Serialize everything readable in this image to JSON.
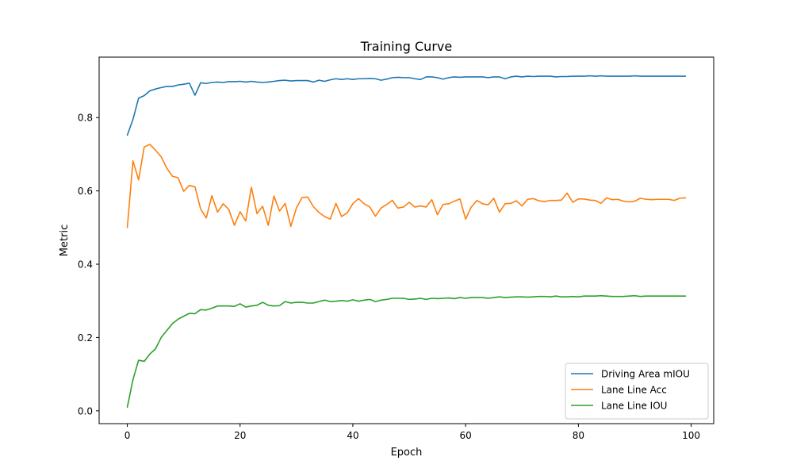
{
  "chart_data": {
    "type": "line",
    "title": "Training Curve",
    "xlabel": "Epoch",
    "ylabel": "Metric",
    "xlim": [
      -5,
      104
    ],
    "ylim": [
      -0.035,
      0.965
    ],
    "xticks": [
      0,
      20,
      40,
      60,
      80,
      100
    ],
    "xtick_labels": [
      "0",
      "20",
      "40",
      "60",
      "80",
      "100"
    ],
    "yticks": [
      0.0,
      0.2,
      0.4,
      0.6,
      0.8
    ],
    "ytick_labels": [
      "0.0",
      "0.2",
      "0.4",
      "0.6",
      "0.8"
    ],
    "grid": false,
    "legend_position": "lower right",
    "x": [
      0,
      1,
      2,
      3,
      4,
      5,
      6,
      7,
      8,
      9,
      10,
      11,
      12,
      13,
      14,
      15,
      16,
      17,
      18,
      19,
      20,
      21,
      22,
      23,
      24,
      25,
      26,
      27,
      28,
      29,
      30,
      31,
      32,
      33,
      34,
      35,
      36,
      37,
      38,
      39,
      40,
      41,
      42,
      43,
      44,
      45,
      46,
      47,
      48,
      49,
      50,
      51,
      52,
      53,
      54,
      55,
      56,
      57,
      58,
      59,
      60,
      61,
      62,
      63,
      64,
      65,
      66,
      67,
      68,
      69,
      70,
      71,
      72,
      73,
      74,
      75,
      76,
      77,
      78,
      79,
      80,
      81,
      82,
      83,
      84,
      85,
      86,
      87,
      88,
      89,
      90,
      91,
      92,
      93,
      94,
      95,
      96,
      97,
      98,
      99
    ],
    "series": [
      {
        "name": "Driving Area mIOU",
        "color": "#1f77b4",
        "values": [
          0.752,
          0.795,
          0.853,
          0.86,
          0.873,
          0.878,
          0.882,
          0.885,
          0.885,
          0.889,
          0.891,
          0.894,
          0.861,
          0.895,
          0.893,
          0.896,
          0.897,
          0.896,
          0.898,
          0.898,
          0.899,
          0.897,
          0.899,
          0.897,
          0.896,
          0.897,
          0.899,
          0.901,
          0.902,
          0.9,
          0.901,
          0.901,
          0.901,
          0.897,
          0.902,
          0.899,
          0.903,
          0.906,
          0.904,
          0.906,
          0.904,
          0.906,
          0.906,
          0.907,
          0.906,
          0.902,
          0.905,
          0.909,
          0.91,
          0.909,
          0.909,
          0.906,
          0.904,
          0.911,
          0.911,
          0.909,
          0.905,
          0.909,
          0.911,
          0.91,
          0.911,
          0.911,
          0.911,
          0.911,
          0.909,
          0.911,
          0.911,
          0.906,
          0.911,
          0.913,
          0.911,
          0.913,
          0.912,
          0.913,
          0.913,
          0.913,
          0.911,
          0.912,
          0.912,
          0.913,
          0.913,
          0.913,
          0.914,
          0.913,
          0.914,
          0.913,
          0.913,
          0.913,
          0.913,
          0.913,
          0.914,
          0.913,
          0.913,
          0.913,
          0.913,
          0.913,
          0.913,
          0.913,
          0.913,
          0.913
        ]
      },
      {
        "name": "Lane Line Acc",
        "color": "#ff7f0e",
        "values": [
          0.5,
          0.682,
          0.63,
          0.72,
          0.727,
          0.711,
          0.693,
          0.662,
          0.64,
          0.636,
          0.599,
          0.615,
          0.611,
          0.551,
          0.526,
          0.587,
          0.542,
          0.565,
          0.549,
          0.506,
          0.543,
          0.518,
          0.61,
          0.538,
          0.558,
          0.506,
          0.586,
          0.545,
          0.566,
          0.503,
          0.554,
          0.582,
          0.583,
          0.557,
          0.541,
          0.53,
          0.523,
          0.566,
          0.53,
          0.54,
          0.565,
          0.579,
          0.565,
          0.556,
          0.531,
          0.553,
          0.563,
          0.574,
          0.553,
          0.556,
          0.569,
          0.556,
          0.559,
          0.556,
          0.576,
          0.535,
          0.563,
          0.565,
          0.572,
          0.578,
          0.523,
          0.556,
          0.574,
          0.565,
          0.562,
          0.58,
          0.542,
          0.565,
          0.566,
          0.573,
          0.559,
          0.577,
          0.579,
          0.573,
          0.571,
          0.574,
          0.574,
          0.575,
          0.594,
          0.569,
          0.578,
          0.578,
          0.575,
          0.574,
          0.566,
          0.581,
          0.576,
          0.577,
          0.572,
          0.57,
          0.572,
          0.58,
          0.577,
          0.576,
          0.577,
          0.577,
          0.577,
          0.574,
          0.58,
          0.581
        ]
      },
      {
        "name": "Lane Line IOU",
        "color": "#2ca02c",
        "values": [
          0.01,
          0.085,
          0.138,
          0.135,
          0.155,
          0.169,
          0.2,
          0.219,
          0.238,
          0.25,
          0.258,
          0.266,
          0.265,
          0.276,
          0.275,
          0.28,
          0.286,
          0.286,
          0.286,
          0.285,
          0.292,
          0.283,
          0.286,
          0.288,
          0.296,
          0.288,
          0.286,
          0.287,
          0.298,
          0.294,
          0.296,
          0.296,
          0.294,
          0.294,
          0.298,
          0.302,
          0.298,
          0.299,
          0.301,
          0.299,
          0.303,
          0.299,
          0.302,
          0.304,
          0.298,
          0.302,
          0.304,
          0.307,
          0.307,
          0.307,
          0.304,
          0.305,
          0.307,
          0.304,
          0.307,
          0.306,
          0.307,
          0.308,
          0.306,
          0.309,
          0.307,
          0.309,
          0.309,
          0.309,
          0.307,
          0.309,
          0.311,
          0.309,
          0.31,
          0.311,
          0.311,
          0.31,
          0.311,
          0.312,
          0.312,
          0.311,
          0.313,
          0.311,
          0.311,
          0.312,
          0.311,
          0.313,
          0.313,
          0.313,
          0.314,
          0.313,
          0.312,
          0.312,
          0.312,
          0.313,
          0.314,
          0.312,
          0.313,
          0.313,
          0.313,
          0.313,
          0.313,
          0.313,
          0.313,
          0.313
        ]
      }
    ]
  }
}
